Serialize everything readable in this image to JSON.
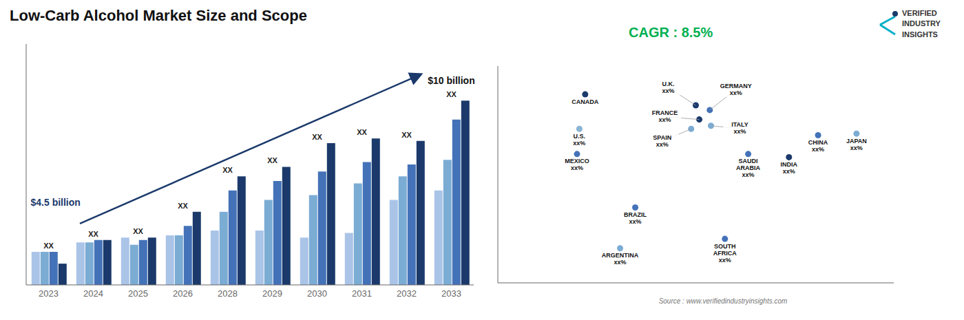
{
  "chart_data": [
    {
      "type": "bar",
      "title": "Low-Carb Alcohol Market Size and Scope",
      "categories": [
        "2023",
        "2024",
        "2025",
        "2026",
        "2028",
        "2029",
        "2030",
        "2031",
        "2032",
        "2033"
      ],
      "series": [
        {
          "color": "#aac4e8",
          "values": [
            1.4,
            1.8,
            2.0,
            2.1,
            2.3,
            2.3,
            2.0,
            2.2,
            3.6,
            4.0
          ]
        },
        {
          "color": "#7bacd4",
          "values": [
            1.4,
            1.8,
            1.7,
            2.1,
            3.1,
            3.6,
            3.8,
            4.3,
            4.6,
            5.3
          ]
        },
        {
          "color": "#4472b8",
          "values": [
            1.4,
            1.9,
            1.9,
            2.5,
            4.0,
            4.4,
            4.8,
            5.2,
            5.1,
            7.0
          ]
        },
        {
          "color": "#1b3a6b",
          "values": [
            0.9,
            1.9,
            2.0,
            3.1,
            4.6,
            5.0,
            6.0,
            6.2,
            6.1,
            7.8
          ]
        }
      ],
      "ylim": [
        0,
        10.2
      ],
      "tick_labels": "x",
      "grid": false,
      "annotations": [
        {
          "text": "$4.5 billion",
          "x": "2023",
          "y": 3.5,
          "color": "#1b3a6b"
        },
        {
          "text": "$10 billion",
          "x": "2033",
          "y": 8.5,
          "color": "#111111"
        },
        {
          "text": "XX",
          "x": "2023",
          "color": "#222222"
        },
        {
          "text": "XX",
          "x": "2024",
          "color": "#222222"
        },
        {
          "text": "XX",
          "x": "2025",
          "color": "#222222"
        },
        {
          "text": "XX",
          "x": "2026",
          "color": "#222222"
        },
        {
          "text": "XX",
          "x": "2028",
          "color": "#222222"
        },
        {
          "text": "XX",
          "x": "2029",
          "color": "#222222"
        },
        {
          "text": "XX",
          "x": "2030",
          "color": "#222222"
        },
        {
          "text": "XX",
          "x": "2031",
          "color": "#222222"
        },
        {
          "text": "XX",
          "x": "2032",
          "color": "#222222"
        },
        {
          "text": "XX",
          "x": "2033",
          "color": "#222222"
        }
      ]
    },
    {
      "type": "scatter",
      "x": [
        -95,
        -100,
        -102,
        -52,
        -65,
        0,
        3,
        -4,
        12,
        13,
        25,
        45,
        105,
        80,
        138
      ],
      "values": [
        62,
        40,
        24,
        -10,
        -36,
        55,
        46,
        40,
        52,
        42,
        -30,
        24,
        36,
        22,
        37
      ],
      "colors": [
        "#1b3a6b",
        "#8ab4d4",
        "#4472b8",
        "#4472b8",
        "#7bacd4",
        "#1b3a6b",
        "#1b3a6b",
        "#7bacd4",
        "#4472b8",
        "#7bacd4",
        "#4472b8",
        "#4472b8",
        "#4472b8",
        "#1b3a6b",
        "#7bacd4"
      ],
      "xlim": [
        -170,
        170
      ],
      "ylim": [
        -58,
        80
      ],
      "tick_labels": false,
      "grid": false,
      "annotations": [
        {
          "text": "CANADA",
          "x": -95,
          "y": 62
        },
        {
          "text": "U.S.\nxx%",
          "x": -100,
          "y": 40
        },
        {
          "text": "MEXICO\nxx%",
          "x": -102,
          "y": 24
        },
        {
          "text": "BRAZIL\nxx%",
          "x": -52,
          "y": -10
        },
        {
          "text": "ARGENTINA\nxx%",
          "x": -65,
          "y": -36
        },
        {
          "text": "U.K.\nxx%",
          "x": 0,
          "y": 55
        },
        {
          "text": "FRANCE\nxx%",
          "x": 3,
          "y": 46
        },
        {
          "text": "SPAIN\nxx%",
          "x": -4,
          "y": 40
        },
        {
          "text": "GERMANY\nxx%",
          "x": 12,
          "y": 52
        },
        {
          "text": "ITALY\nxx%",
          "x": 13,
          "y": 42
        },
        {
          "text": "SOUTH\nAFRICA\nxx%",
          "x": 25,
          "y": -30
        },
        {
          "text": "SAUDI\nARABIA\nxx%",
          "x": 45,
          "y": 24
        },
        {
          "text": "CHINA\nxx%",
          "x": 105,
          "y": 36
        },
        {
          "text": "INDIA\nxx%",
          "x": 80,
          "y": 22
        },
        {
          "text": "JAPAN\nxx%",
          "x": 138,
          "y": 37
        },
        {
          "text": "CAGR : 8.5%",
          "color": "#00b050"
        },
        {
          "text": "Source : www.verifiedindustryinsights.com",
          "color": "#777777"
        },
        {
          "text": "VERIFIED\nINDUSTRY\nINSIGHTS",
          "color": "#333333"
        }
      ]
    }
  ]
}
